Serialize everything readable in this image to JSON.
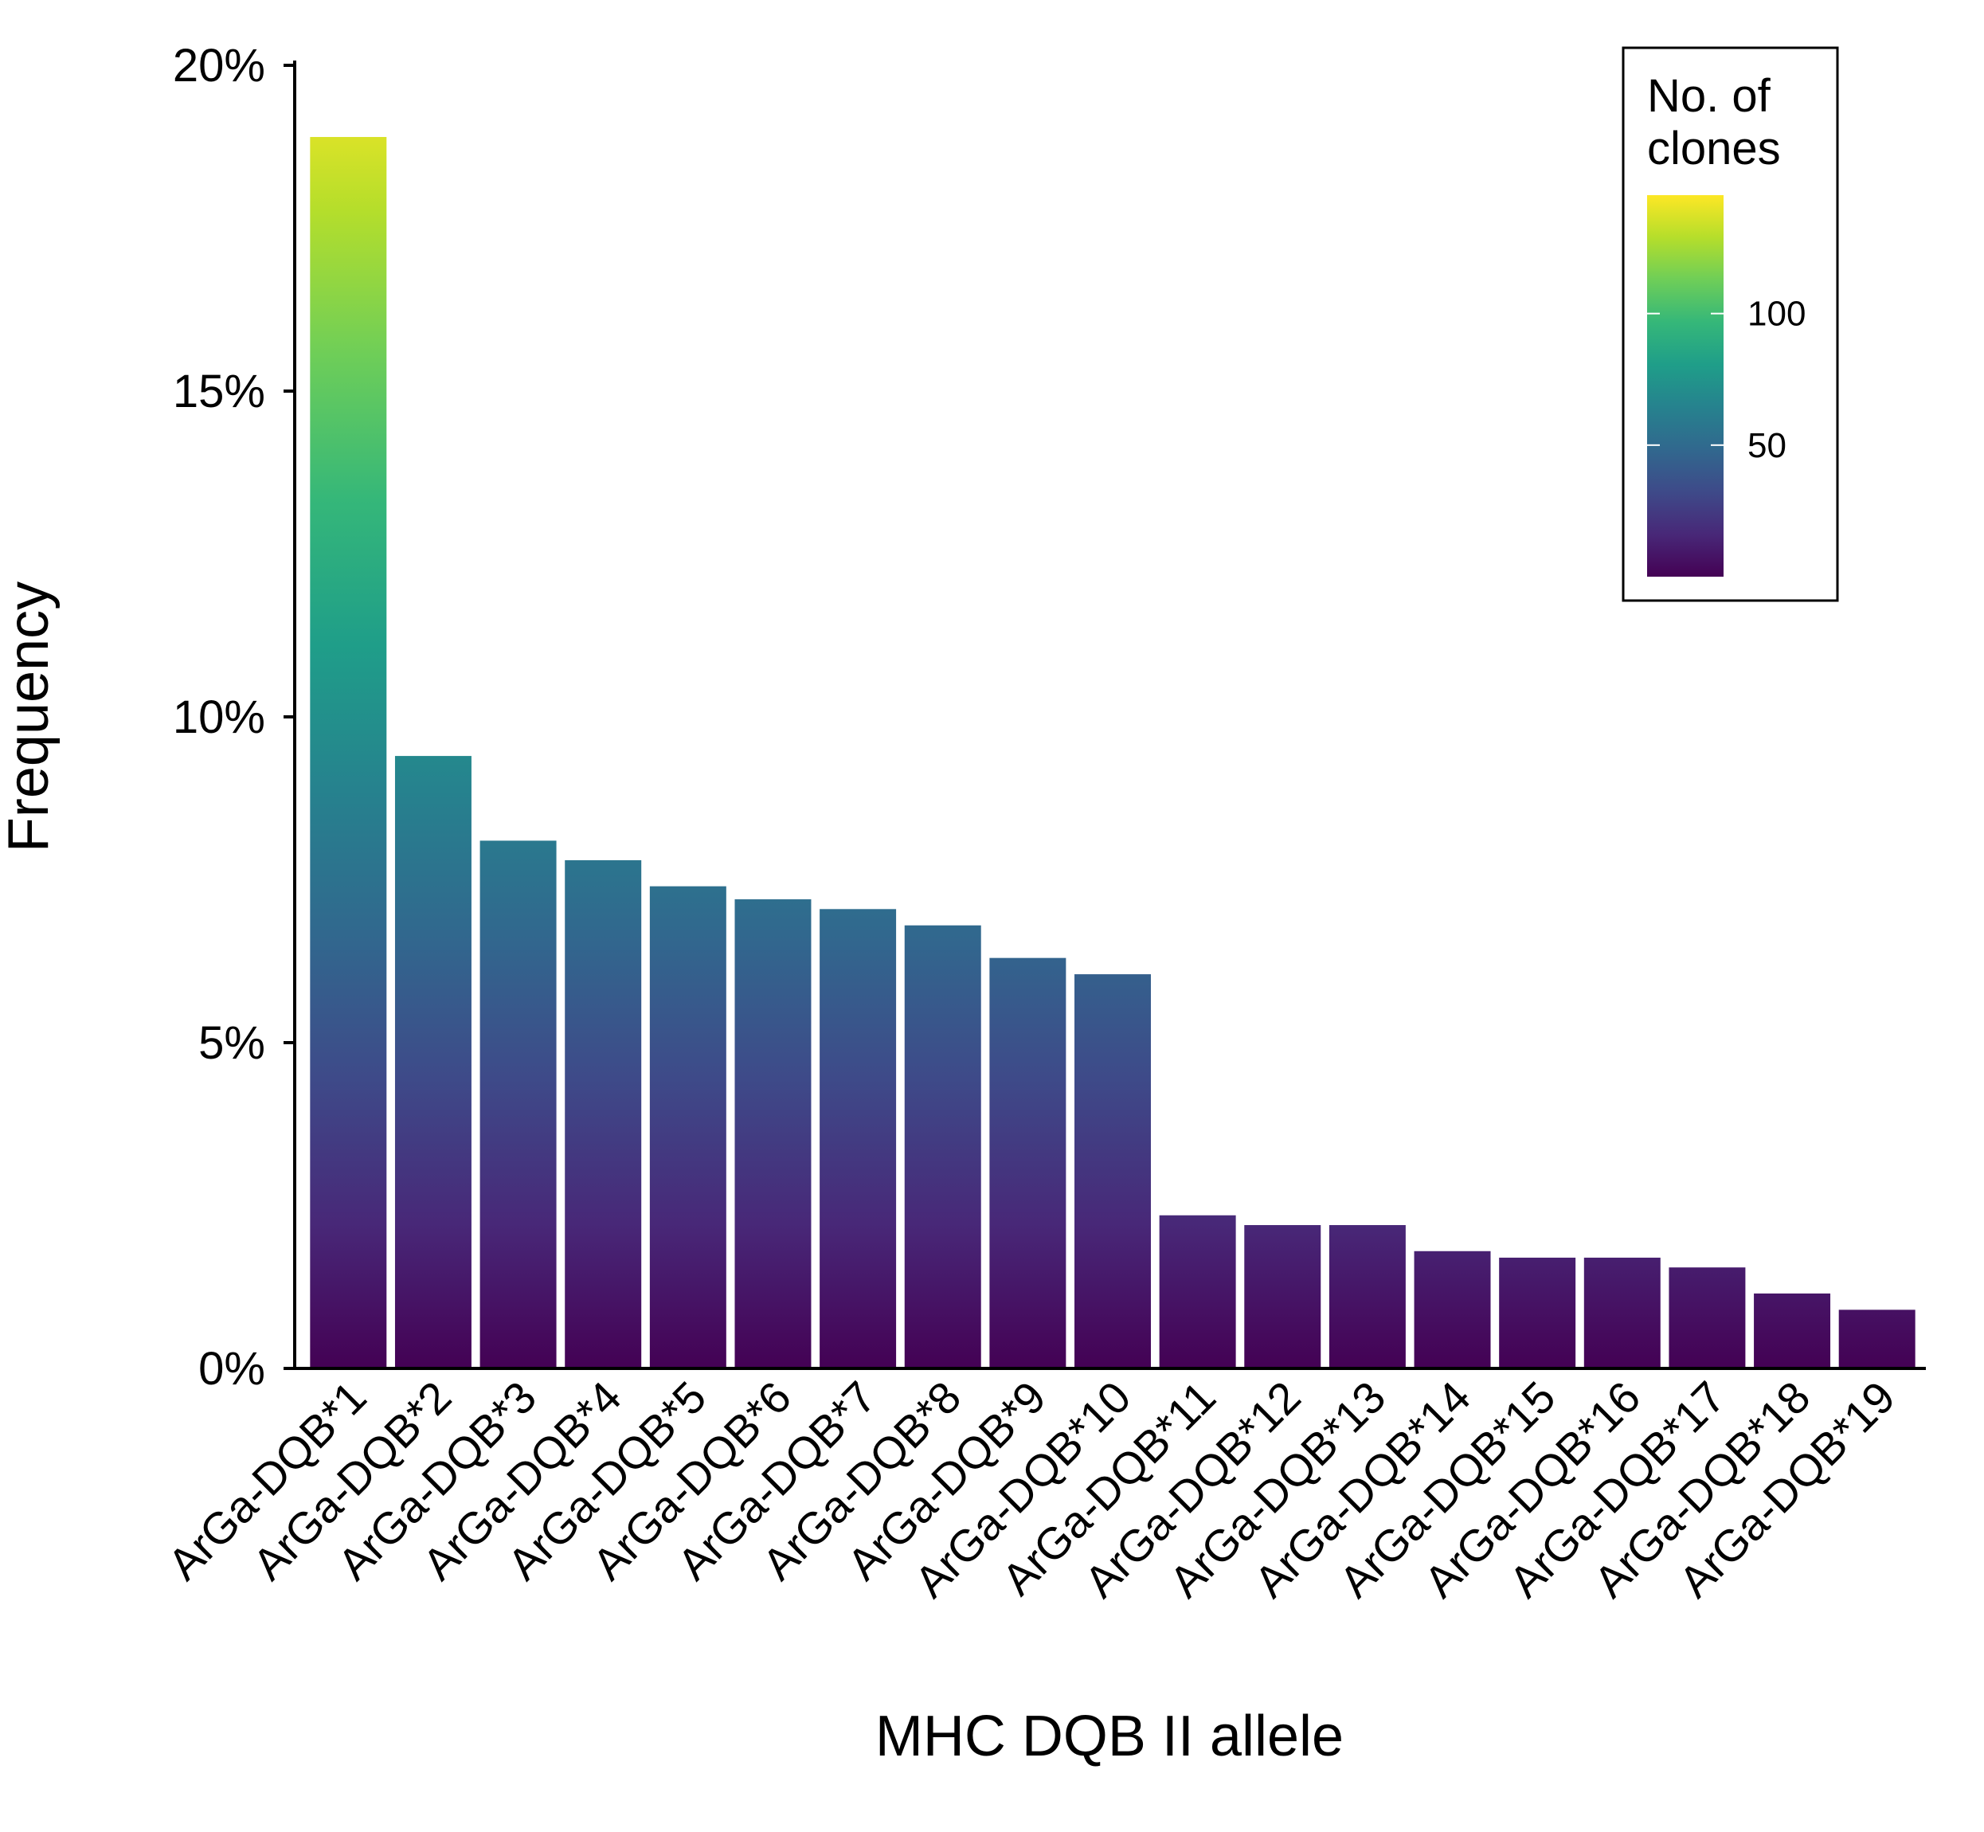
{
  "chart_data": {
    "type": "bar",
    "xlabel": "MHC DQB II allele",
    "ylabel": "Frequency",
    "ylim": [
      0,
      20
    ],
    "y_unit": "%",
    "y_ticks": [
      {
        "value": 0,
        "label": "0%"
      },
      {
        "value": 5,
        "label": "5%"
      },
      {
        "value": 10,
        "label": "10%"
      },
      {
        "value": 15,
        "label": "15%"
      },
      {
        "value": 20,
        "label": "20%"
      }
    ],
    "categories": [
      "ArGa-DQB*1",
      "ArGa-DQB*2",
      "ArGa-DQB*3",
      "ArGa-DQB*4",
      "ArGa-DQB*5",
      "ArGa-DQB*6",
      "ArGa-DQB*7",
      "ArGa-DQB*8",
      "ArGa-DQB*9",
      "ArGa-DQB*10",
      "ArGa-DQB*11",
      "ArGa-DQB*12",
      "ArGa-DQB*13",
      "ArGa-DQB*14",
      "ArGa-DQB*15",
      "ArGa-DQB*16",
      "ArGa-DQB*17",
      "ArGa-DQB*18",
      "ArGa-DQB*19"
    ],
    "values": [
      18.9,
      9.4,
      8.1,
      7.8,
      7.4,
      7.2,
      7.05,
      6.8,
      6.3,
      6.05,
      2.35,
      2.2,
      2.2,
      1.8,
      1.7,
      1.7,
      1.55,
      1.15,
      0.9
    ],
    "fill": "gradient by No. of clones (viridis)",
    "grid": false,
    "legend": {
      "title_lines": [
        "No. of",
        "clones"
      ],
      "position": "top-right",
      "range": [
        0,
        145
      ],
      "ticks": [
        {
          "value": 50,
          "label": "50"
        },
        {
          "value": 100,
          "label": "100"
        }
      ],
      "colors": [
        "#440154",
        "#482878",
        "#3e4a89",
        "#31688e",
        "#26828e",
        "#1f9e89",
        "#35b779",
        "#6ece58",
        "#b5de2b",
        "#fde725"
      ]
    }
  }
}
